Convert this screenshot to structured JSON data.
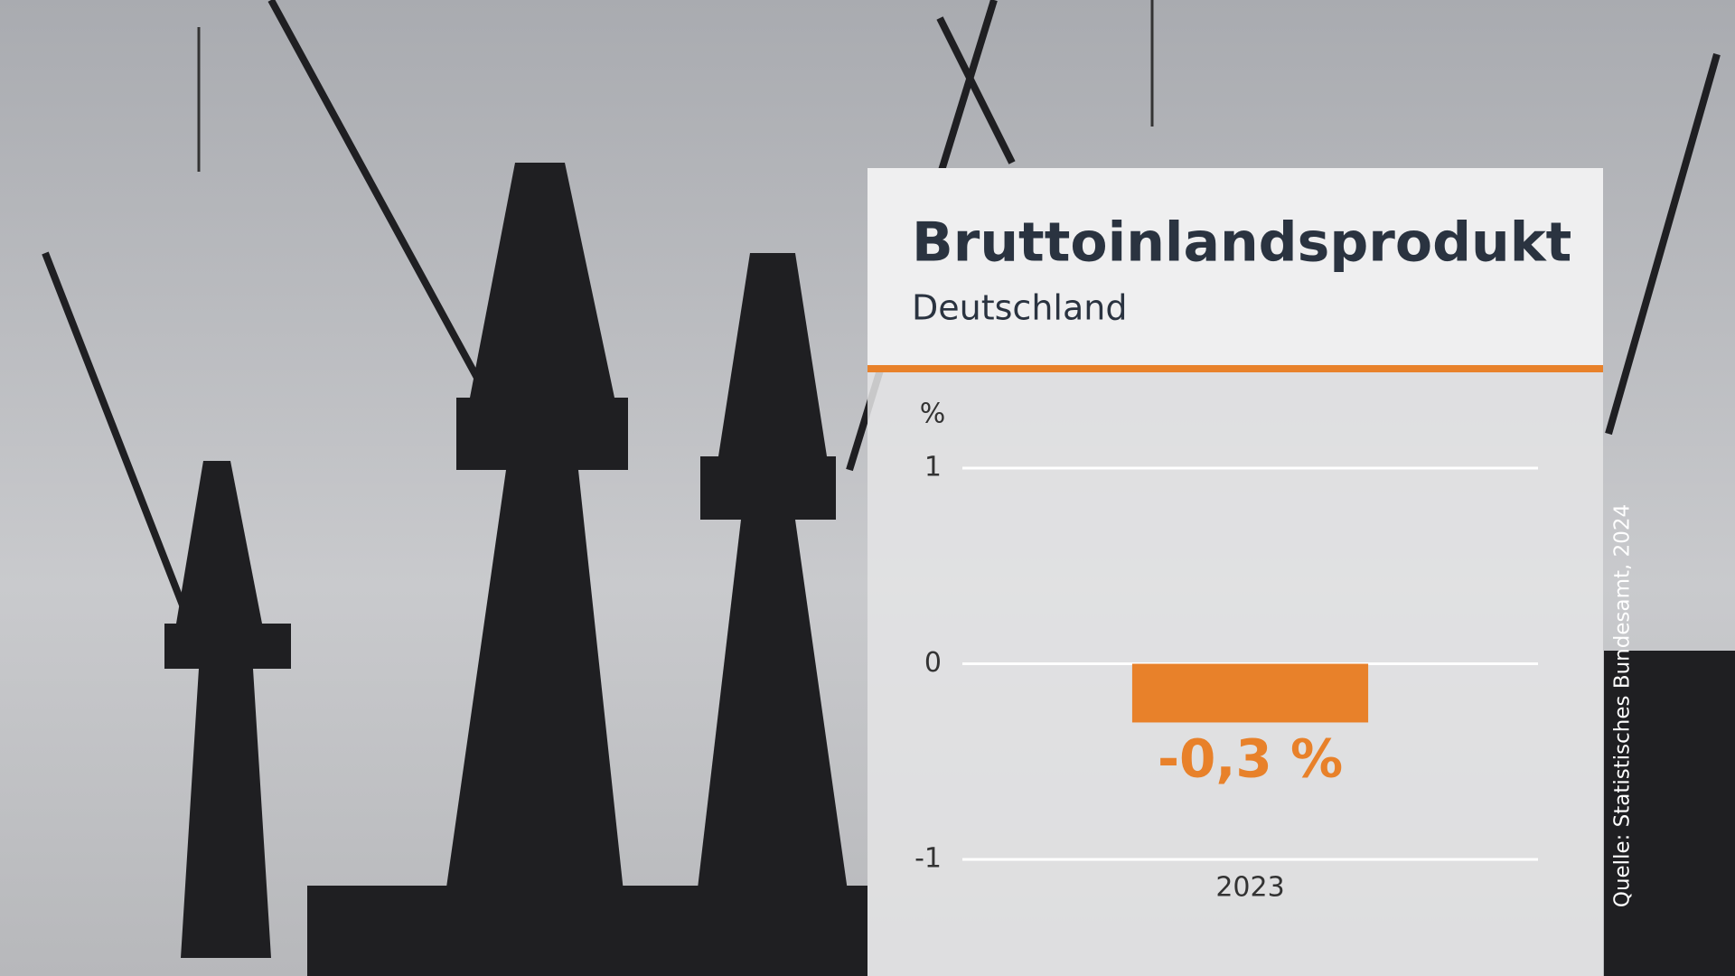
{
  "chart_data": {
    "type": "bar",
    "title": "Bruttoinlandsprodukt",
    "subtitle": "Deutschland",
    "y_label": "%",
    "categories": [
      "2023"
    ],
    "values": [
      -0.3
    ],
    "value_labels": [
      "-0,3 %"
    ],
    "color": "#e8812a",
    "ylim": [
      -1,
      1
    ],
    "yticks": [
      1,
      0,
      -1
    ],
    "grid": true,
    "source": "Quelle: Statistisches Bundesamt, 2024"
  }
}
